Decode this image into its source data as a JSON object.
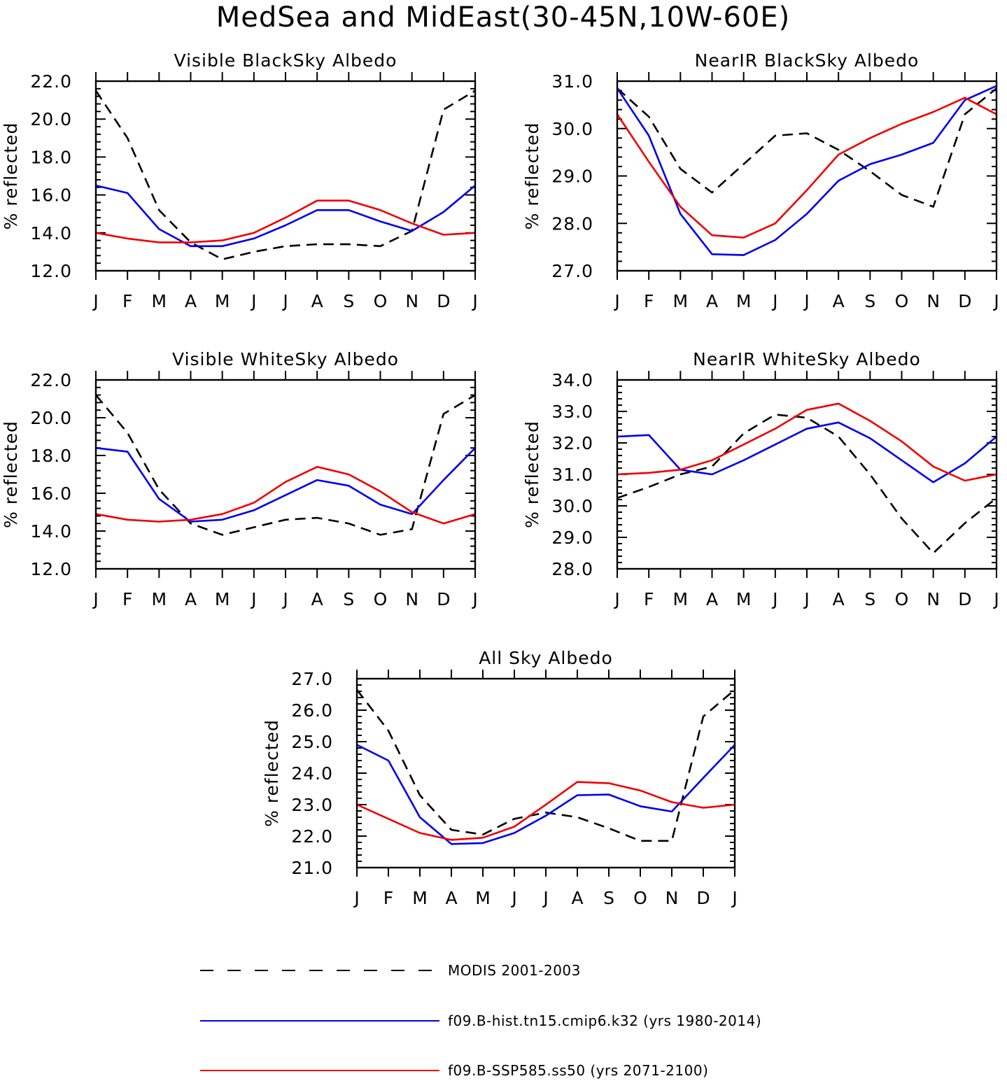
{
  "title": "MedSea and MidEast(30-45N,10W-60E)",
  "colors": {
    "MODIS": "#000000",
    "hist": "#0000ee",
    "ssp": "#ee0000"
  },
  "legend": [
    {
      "key": "MODIS",
      "label": "MODIS 2001-2003",
      "style": "dashed"
    },
    {
      "key": "hist",
      "label": "f09.B-hist.tn15.cmip6.k32 (yrs 1980-2014)",
      "style": "solid"
    },
    {
      "key": "ssp",
      "label": "f09.B-SSP585.ss50 (yrs 2071-2100)",
      "style": "solid"
    }
  ],
  "chart_data": [
    {
      "type": "line",
      "title": "Visible BlackSky Albedo",
      "ylabel": "% reflected",
      "categories": [
        "J",
        "F",
        "M",
        "A",
        "M",
        "J",
        "J",
        "A",
        "S",
        "O",
        "N",
        "D",
        "J"
      ],
      "ylim": [
        12.0,
        22.0
      ],
      "yticks": [
        "12.0",
        "14.0",
        "16.0",
        "18.0",
        "20.0",
        "22.0"
      ],
      "series": [
        {
          "name": "MODIS 2001-2003",
          "key": "MODIS",
          "values": [
            21.5,
            19.0,
            15.2,
            13.5,
            12.6,
            13.0,
            13.3,
            13.4,
            13.4,
            13.3,
            14.1,
            20.5,
            21.5
          ]
        },
        {
          "name": "f09.B-hist.tn15.cmip6.k32 (yrs 1980-2014)",
          "key": "hist",
          "values": [
            16.5,
            16.1,
            14.2,
            13.3,
            13.3,
            13.7,
            14.4,
            15.2,
            15.2,
            14.6,
            14.1,
            15.1,
            16.5
          ]
        },
        {
          "name": "f09.B-SSP585.ss50 (yrs 2071-2100)",
          "key": "ssp",
          "values": [
            14.0,
            13.7,
            13.5,
            13.5,
            13.6,
            14.0,
            14.8,
            15.7,
            15.7,
            15.2,
            14.5,
            13.9,
            14.0
          ]
        }
      ]
    },
    {
      "type": "line",
      "title": "NearIR BlackSky Albedo",
      "ylabel": "% reflected",
      "categories": [
        "J",
        "F",
        "M",
        "A",
        "M",
        "J",
        "J",
        "A",
        "S",
        "O",
        "N",
        "D",
        "J"
      ],
      "ylim": [
        27.0,
        31.0
      ],
      "yticks": [
        "27.0",
        "28.0",
        "29.0",
        "30.0",
        "31.0"
      ],
      "series": [
        {
          "name": "MODIS 2001-2003",
          "key": "MODIS",
          "values": [
            30.85,
            30.25,
            29.15,
            28.65,
            29.25,
            29.85,
            29.9,
            29.55,
            29.1,
            28.6,
            28.35,
            30.3,
            30.85
          ]
        },
        {
          "name": "f09.B-hist.tn15.cmip6.k32 (yrs 1980-2014)",
          "key": "hist",
          "values": [
            30.85,
            29.85,
            28.2,
            27.35,
            27.33,
            27.65,
            28.2,
            28.9,
            29.25,
            29.45,
            29.7,
            30.6,
            30.9
          ]
        },
        {
          "name": "f09.B-SSP585.ss50 (yrs 2071-2100)",
          "key": "ssp",
          "values": [
            30.3,
            29.3,
            28.35,
            27.75,
            27.7,
            28.0,
            28.7,
            29.45,
            29.8,
            30.1,
            30.35,
            30.65,
            30.3
          ]
        }
      ]
    },
    {
      "type": "line",
      "title": "Visible WhiteSky Albedo",
      "ylabel": "% reflected",
      "categories": [
        "J",
        "F",
        "M",
        "A",
        "M",
        "J",
        "J",
        "A",
        "S",
        "O",
        "N",
        "D",
        "J"
      ],
      "ylim": [
        12.0,
        22.0
      ],
      "yticks": [
        "12.0",
        "14.0",
        "16.0",
        "18.0",
        "20.0",
        "22.0"
      ],
      "series": [
        {
          "name": "MODIS 2001-2003",
          "key": "MODIS",
          "values": [
            21.2,
            19.2,
            16.2,
            14.4,
            13.8,
            14.2,
            14.6,
            14.7,
            14.4,
            13.8,
            14.1,
            20.2,
            21.2
          ]
        },
        {
          "name": "f09.B-hist.tn15.cmip6.k32 (yrs 1980-2014)",
          "key": "hist",
          "values": [
            18.4,
            18.2,
            15.7,
            14.5,
            14.6,
            15.1,
            15.9,
            16.7,
            16.4,
            15.4,
            14.9,
            16.7,
            18.4
          ]
        },
        {
          "name": "f09.B-SSP585.ss50 (yrs 2071-2100)",
          "key": "ssp",
          "values": [
            14.9,
            14.6,
            14.5,
            14.6,
            14.9,
            15.5,
            16.6,
            17.4,
            17.0,
            16.1,
            15.0,
            14.4,
            14.9
          ]
        }
      ]
    },
    {
      "type": "line",
      "title": "NearIR WhiteSky Albedo",
      "ylabel": "% reflected",
      "categories": [
        "J",
        "F",
        "M",
        "A",
        "M",
        "J",
        "J",
        "A",
        "S",
        "O",
        "N",
        "D",
        "J"
      ],
      "ylim": [
        28.0,
        34.0
      ],
      "yticks": [
        "28.0",
        "29.0",
        "30.0",
        "31.0",
        "32.0",
        "33.0",
        "34.0"
      ],
      "series": [
        {
          "name": "MODIS 2001-2003",
          "key": "MODIS",
          "values": [
            30.25,
            30.6,
            31.0,
            31.25,
            32.3,
            32.9,
            32.8,
            32.2,
            31.0,
            29.6,
            28.5,
            29.45,
            30.25
          ]
        },
        {
          "name": "f09.B-hist.tn15.cmip6.k32 (yrs 1980-2014)",
          "key": "hist",
          "values": [
            32.2,
            32.25,
            31.15,
            31.0,
            31.45,
            31.95,
            32.45,
            32.65,
            32.15,
            31.45,
            30.75,
            31.35,
            32.2
          ]
        },
        {
          "name": "f09.B-SSP585.ss50 (yrs 2071-2100)",
          "key": "ssp",
          "values": [
            31.0,
            31.05,
            31.15,
            31.45,
            31.95,
            32.45,
            33.05,
            33.25,
            32.7,
            32.05,
            31.25,
            30.8,
            31.0
          ]
        }
      ]
    },
    {
      "type": "line",
      "title": "All Sky Albedo",
      "ylabel": "% reflected",
      "categories": [
        "J",
        "F",
        "M",
        "A",
        "M",
        "J",
        "J",
        "A",
        "S",
        "O",
        "N",
        "D",
        "J"
      ],
      "ylim": [
        21.0,
        27.0
      ],
      "yticks": [
        "21.0",
        "22.0",
        "23.0",
        "24.0",
        "25.0",
        "26.0",
        "27.0"
      ],
      "series": [
        {
          "name": "MODIS 2001-2003",
          "key": "MODIS",
          "values": [
            26.65,
            25.35,
            23.3,
            22.2,
            22.05,
            22.55,
            22.75,
            22.6,
            22.25,
            21.85,
            21.85,
            25.8,
            26.65
          ]
        },
        {
          "name": "f09.B-hist.tn15.cmip6.k32 (yrs 1980-2014)",
          "key": "hist",
          "values": [
            24.9,
            24.4,
            22.6,
            21.75,
            21.78,
            22.1,
            22.65,
            23.3,
            23.32,
            22.95,
            22.78,
            23.85,
            24.9
          ]
        },
        {
          "name": "f09.B-SSP585.ss50 (yrs 2071-2100)",
          "key": "ssp",
          "values": [
            23.0,
            22.55,
            22.1,
            21.88,
            21.95,
            22.3,
            23.0,
            23.72,
            23.68,
            23.45,
            23.08,
            22.9,
            23.0
          ]
        }
      ]
    }
  ]
}
